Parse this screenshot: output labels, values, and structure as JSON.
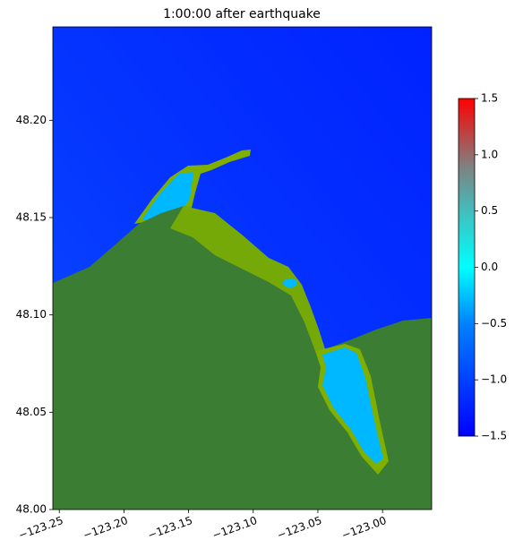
{
  "chart_data": {
    "type": "map",
    "title": "1:00:00 after earthquake",
    "xlim": [
      -123.255,
      -122.962
    ],
    "xticks": [
      {
        "value": -123.25,
        "label": "−123.25"
      },
      {
        "value": -123.2,
        "label": "−123.20"
      },
      {
        "value": -123.15,
        "label": "−123.15"
      },
      {
        "value": -123.1,
        "label": "−123.10"
      },
      {
        "value": -123.05,
        "label": "−123.05"
      },
      {
        "value": -123.0,
        "label": "−123.00"
      }
    ],
    "ylim": [
      48.0,
      48.248
    ],
    "yticks": [
      {
        "value": 48.0,
        "label": "48.00"
      },
      48.05,
      {
        "value": 48.1,
        "label": "48.10"
      },
      48.15,
      {
        "value": 48.2,
        "label": "48.20"
      }
    ],
    "colorbar": {
      "lim": [
        -1.5,
        1.5
      ],
      "ticks": [
        {
          "value": -1.5,
          "label": "−1.5"
        },
        {
          "value": -1.0,
          "label": "−1.0"
        },
        {
          "value": -0.5,
          "label": "−0.5"
        },
        {
          "value": 0.0,
          "label": "0.0"
        },
        0.5,
        {
          "value": 1.0,
          "label": "1.0"
        },
        1.5
      ]
    }
  }
}
